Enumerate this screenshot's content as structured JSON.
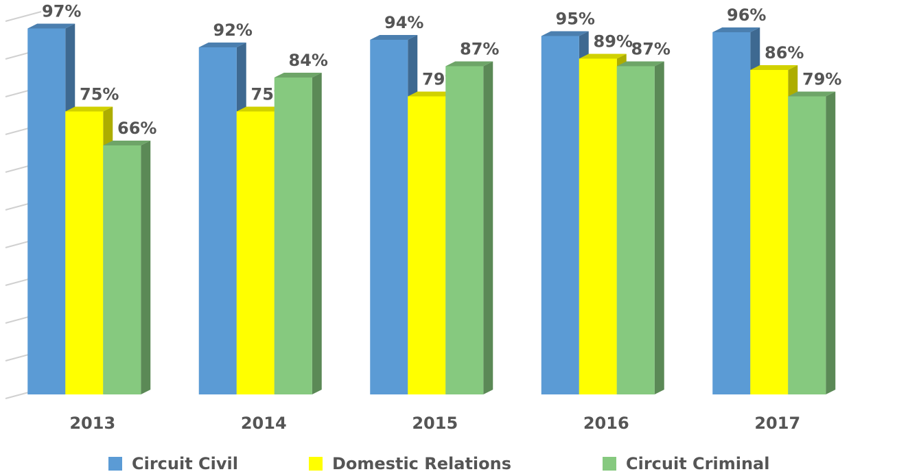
{
  "chart_data": {
    "type": "bar3d",
    "categories": [
      "2013",
      "2014",
      "2015",
      "2016",
      "2017"
    ],
    "series": [
      {
        "name": "Circuit Civil",
        "color": "#5b9bd5",
        "values": [
          97,
          92,
          94,
          95,
          96
        ],
        "value_labels": [
          "97%",
          "92%",
          "94%",
          "95%",
          "96%"
        ]
      },
      {
        "name": "Domestic Relations",
        "color": "#ffff00",
        "values": [
          75,
          75,
          79,
          89,
          86
        ],
        "value_labels": [
          "75%",
          "75%",
          "79%",
          "89%",
          "86%"
        ]
      },
      {
        "name": "Circuit Criminal",
        "color": "#86c97f",
        "values": [
          66,
          84,
          87,
          87,
          79
        ],
        "value_labels": [
          "66%",
          "84%",
          "87%",
          "87%",
          "79%"
        ]
      }
    ],
    "ylim": [
      0,
      100
    ],
    "yticks": [
      0,
      10,
      20,
      30,
      40,
      50,
      60,
      70,
      80,
      90,
      100
    ],
    "grid": true,
    "legend": "bottom"
  }
}
